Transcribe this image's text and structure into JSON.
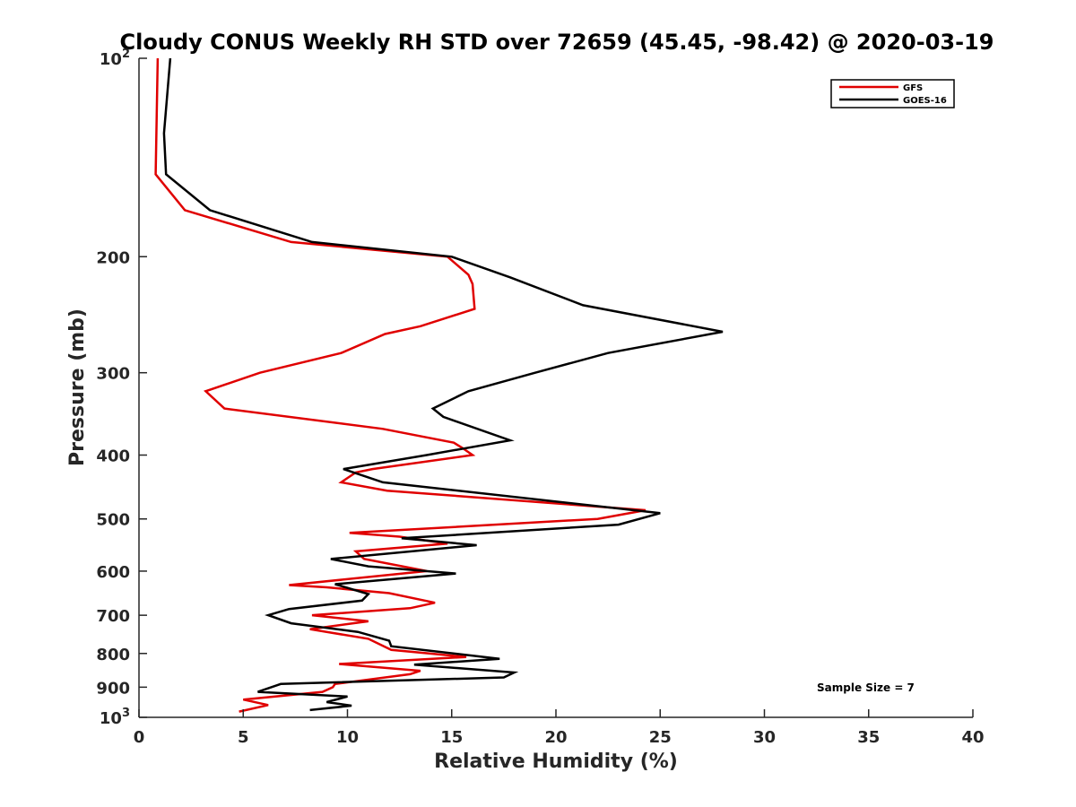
{
  "chart_data": {
    "type": "line",
    "title": "Cloudy CONUS Weekly RH STD over 72659 (45.45, -98.42) @ 2020-03-19",
    "xlabel": "Relative Humidity (%)",
    "ylabel": "Pressure (mb)",
    "xlim": [
      0,
      40
    ],
    "ylim": [
      100,
      1000
    ],
    "y_scale": "log",
    "y_reversed": true,
    "grid": false,
    "legend_position": "top-right",
    "annotation": "Sample Size = 7",
    "x_ticks": [
      {
        "value": 0,
        "label": "0"
      },
      {
        "value": 5,
        "label": "5"
      },
      {
        "value": 10,
        "label": "10"
      },
      {
        "value": 15,
        "label": "15"
      },
      {
        "value": 20,
        "label": "20"
      },
      {
        "value": 25,
        "label": "25"
      },
      {
        "value": 30,
        "label": "30"
      },
      {
        "value": 35,
        "label": "35"
      },
      {
        "value": 40,
        "label": "40"
      }
    ],
    "y_ticks": [
      {
        "value": 100,
        "base": "10",
        "exp": "2"
      },
      {
        "value": 200,
        "base": "200",
        "exp": ""
      },
      {
        "value": 300,
        "base": "300",
        "exp": ""
      },
      {
        "value": 400,
        "base": "400",
        "exp": ""
      },
      {
        "value": 500,
        "base": "500",
        "exp": ""
      },
      {
        "value": 600,
        "base": "600",
        "exp": ""
      },
      {
        "value": 700,
        "base": "700",
        "exp": ""
      },
      {
        "value": 800,
        "base": "800",
        "exp": ""
      },
      {
        "value": 900,
        "base": "900",
        "exp": ""
      },
      {
        "value": 1000,
        "base": "10",
        "exp": "3"
      }
    ],
    "series": [
      {
        "name": "GFS",
        "color": "#e00000",
        "points": [
          [
            0.9,
            100
          ],
          [
            0.8,
            150
          ],
          [
            2.2,
            170
          ],
          [
            7.3,
            190
          ],
          [
            14.8,
            200
          ],
          [
            15.8,
            213
          ],
          [
            16.0,
            220
          ],
          [
            16.1,
            240
          ],
          [
            13.5,
            255
          ],
          [
            11.8,
            262
          ],
          [
            9.7,
            280
          ],
          [
            5.8,
            300
          ],
          [
            3.2,
            320
          ],
          [
            4.1,
            340
          ],
          [
            11.7,
            365
          ],
          [
            15.1,
            383
          ],
          [
            15.5,
            390
          ],
          [
            16.0,
            400
          ],
          [
            11.2,
            420
          ],
          [
            10.4,
            425
          ],
          [
            9.7,
            440
          ],
          [
            11.9,
            453
          ],
          [
            24.3,
            485
          ],
          [
            22.0,
            500
          ],
          [
            10.1,
            525
          ],
          [
            12.5,
            532
          ],
          [
            14.8,
            545
          ],
          [
            10.4,
            560
          ],
          [
            10.8,
            575
          ],
          [
            13.8,
            600
          ],
          [
            7.2,
            630
          ],
          [
            9.0,
            635
          ],
          [
            12.0,
            648
          ],
          [
            14.2,
            670
          ],
          [
            13.0,
            683
          ],
          [
            8.3,
            700
          ],
          [
            11.0,
            715
          ],
          [
            8.2,
            735
          ],
          [
            11.0,
            760
          ],
          [
            12.1,
            790
          ],
          [
            15.7,
            810
          ],
          [
            9.6,
            830
          ],
          [
            13.5,
            850
          ],
          [
            13.0,
            860
          ],
          [
            9.4,
            890
          ],
          [
            9.3,
            900
          ],
          [
            8.8,
            915
          ],
          [
            5.0,
            940
          ],
          [
            6.2,
            958
          ],
          [
            4.8,
            980
          ]
        ]
      },
      {
        "name": "GOES-16",
        "color": "#000000",
        "points": [
          [
            1.5,
            100
          ],
          [
            1.2,
            130
          ],
          [
            1.3,
            150
          ],
          [
            3.4,
            170
          ],
          [
            8.3,
            190
          ],
          [
            15.0,
            200
          ],
          [
            17.8,
            215
          ],
          [
            21.3,
            237
          ],
          [
            28.0,
            260
          ],
          [
            22.5,
            280
          ],
          [
            19.0,
            300
          ],
          [
            15.8,
            320
          ],
          [
            14.1,
            340
          ],
          [
            14.6,
            350
          ],
          [
            17.8,
            380
          ],
          [
            13.8,
            400
          ],
          [
            9.8,
            420
          ],
          [
            11.7,
            440
          ],
          [
            25.0,
            490
          ],
          [
            23.0,
            510
          ],
          [
            12.6,
            535
          ],
          [
            16.2,
            548
          ],
          [
            9.2,
            575
          ],
          [
            11.0,
            590
          ],
          [
            15.2,
            605
          ],
          [
            9.4,
            628
          ],
          [
            11.0,
            650
          ],
          [
            10.7,
            665
          ],
          [
            7.2,
            685
          ],
          [
            6.2,
            700
          ],
          [
            7.3,
            720
          ],
          [
            10.5,
            742
          ],
          [
            12.0,
            765
          ],
          [
            12.1,
            780
          ],
          [
            17.3,
            815
          ],
          [
            13.2,
            832
          ],
          [
            18.0,
            855
          ],
          [
            17.5,
            870
          ],
          [
            6.8,
            890
          ],
          [
            5.7,
            915
          ],
          [
            10.0,
            930
          ],
          [
            9.0,
            948
          ],
          [
            10.2,
            960
          ],
          [
            8.2,
            975
          ]
        ]
      }
    ]
  }
}
